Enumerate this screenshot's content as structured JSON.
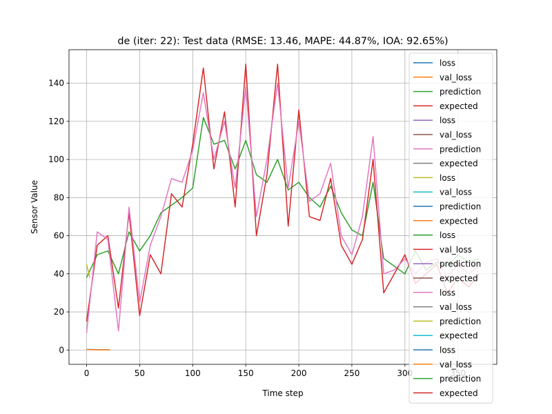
{
  "chart_data": {
    "type": "line",
    "title": "de (iter: 22): Test data (RMSE: 13.46, MAPE: 44.87%, IOA: 92.65%)",
    "xlabel": "Time step",
    "ylabel": "Sensor Value",
    "xlim": [
      -16.6,
      386.6
    ],
    "ylim": [
      -7.5,
      157.6
    ],
    "xticks": [
      0,
      50,
      100,
      150,
      200,
      250,
      300,
      350
    ],
    "yticks": [
      0,
      20,
      40,
      60,
      80,
      100,
      120,
      140
    ],
    "grid": true,
    "legend_position": "top-right",
    "color_cycle": [
      "#1f77b4",
      "#ff7f0e",
      "#2ca02c",
      "#d62728",
      "#9467bd",
      "#8c564b",
      "#e377c2",
      "#7f7f7f",
      "#bcbd22",
      "#17becf"
    ],
    "series": [
      {
        "name": "loss",
        "x": [
          0,
          5,
          10,
          15,
          20,
          22
        ],
        "y": [
          0.3,
          0.3,
          0.2,
          0.2,
          0.1,
          0.1
        ]
      },
      {
        "name": "val_loss",
        "x": [
          0,
          5,
          10,
          15,
          20,
          22
        ],
        "y": [
          0.2,
          0.2,
          0.1,
          0.1,
          0.1,
          0.1
        ]
      },
      {
        "name": "prediction",
        "x": [
          0,
          10,
          20,
          30,
          40,
          50,
          60,
          70,
          80,
          90,
          100,
          110,
          120,
          130,
          140,
          150,
          160,
          170,
          180,
          190,
          200,
          210,
          220,
          230,
          240,
          250,
          260,
          270,
          280,
          290,
          300,
          310,
          320,
          330,
          340,
          350,
          360,
          370
        ],
        "y": [
          38,
          50,
          52,
          40,
          62,
          52,
          60,
          72,
          76,
          80,
          85,
          122,
          108,
          110,
          95,
          110,
          92,
          88,
          100,
          84,
          88,
          80,
          75,
          86,
          72,
          63,
          60,
          88,
          48,
          44,
          40,
          52,
          42,
          46,
          44,
          50,
          46,
          48
        ]
      },
      {
        "name": "expected",
        "x": [
          0,
          10,
          20,
          30,
          40,
          50,
          60,
          70,
          80,
          90,
          100,
          110,
          120,
          130,
          140,
          150,
          160,
          170,
          180,
          190,
          200,
          210,
          220,
          230,
          240,
          250,
          260,
          270,
          280,
          290,
          300,
          310,
          320,
          330,
          340,
          350,
          360,
          370
        ],
        "y": [
          15,
          55,
          60,
          22,
          72,
          18,
          50,
          40,
          82,
          75,
          108,
          148,
          95,
          125,
          75,
          150,
          60,
          92,
          150,
          65,
          126,
          70,
          68,
          90,
          55,
          45,
          58,
          100,
          30,
          40,
          50,
          35,
          40,
          45,
          30,
          38,
          33,
          40
        ]
      },
      {
        "name": "loss",
        "x": [],
        "y": []
      },
      {
        "name": "val_loss",
        "x": [],
        "y": []
      },
      {
        "name": "prediction",
        "x": [
          0,
          10,
          20,
          30,
          40,
          50,
          60,
          70,
          80,
          90,
          100,
          110,
          120,
          130,
          140,
          150,
          160,
          170,
          180,
          190,
          200,
          210,
          220,
          230,
          240,
          250,
          260,
          270,
          280,
          290,
          300,
          310,
          320,
          330,
          340,
          350,
          360,
          370
        ],
        "y": [
          9,
          62,
          58,
          10,
          75,
          25,
          55,
          70,
          90,
          88,
          105,
          135,
          100,
          120,
          85,
          138,
          70,
          100,
          140,
          85,
          120,
          78,
          82,
          98,
          60,
          50,
          70,
          112,
          40,
          42,
          48,
          40,
          46,
          48,
          38,
          45,
          40,
          44
        ]
      },
      {
        "name": "expected",
        "x": [],
        "y": []
      },
      {
        "name": "loss",
        "x": [
          0,
          3
        ],
        "y": [
          45,
          38
        ]
      },
      {
        "name": "val_loss",
        "x": [],
        "y": []
      },
      {
        "name": "prediction",
        "x": [],
        "y": []
      },
      {
        "name": "expected",
        "x": [],
        "y": []
      },
      {
        "name": "loss",
        "x": [],
        "y": []
      },
      {
        "name": "val_loss",
        "x": [],
        "y": []
      },
      {
        "name": "prediction",
        "x": [],
        "y": []
      },
      {
        "name": "expected",
        "x": [],
        "y": []
      },
      {
        "name": "loss",
        "x": [],
        "y": []
      },
      {
        "name": "val_loss",
        "x": [],
        "y": []
      },
      {
        "name": "prediction",
        "x": [],
        "y": []
      },
      {
        "name": "expected",
        "x": [],
        "y": []
      },
      {
        "name": "loss",
        "x": [],
        "y": []
      },
      {
        "name": "val_loss",
        "x": [],
        "y": []
      },
      {
        "name": "prediction",
        "x": [],
        "y": []
      },
      {
        "name": "expected",
        "x": [],
        "y": []
      }
    ]
  }
}
